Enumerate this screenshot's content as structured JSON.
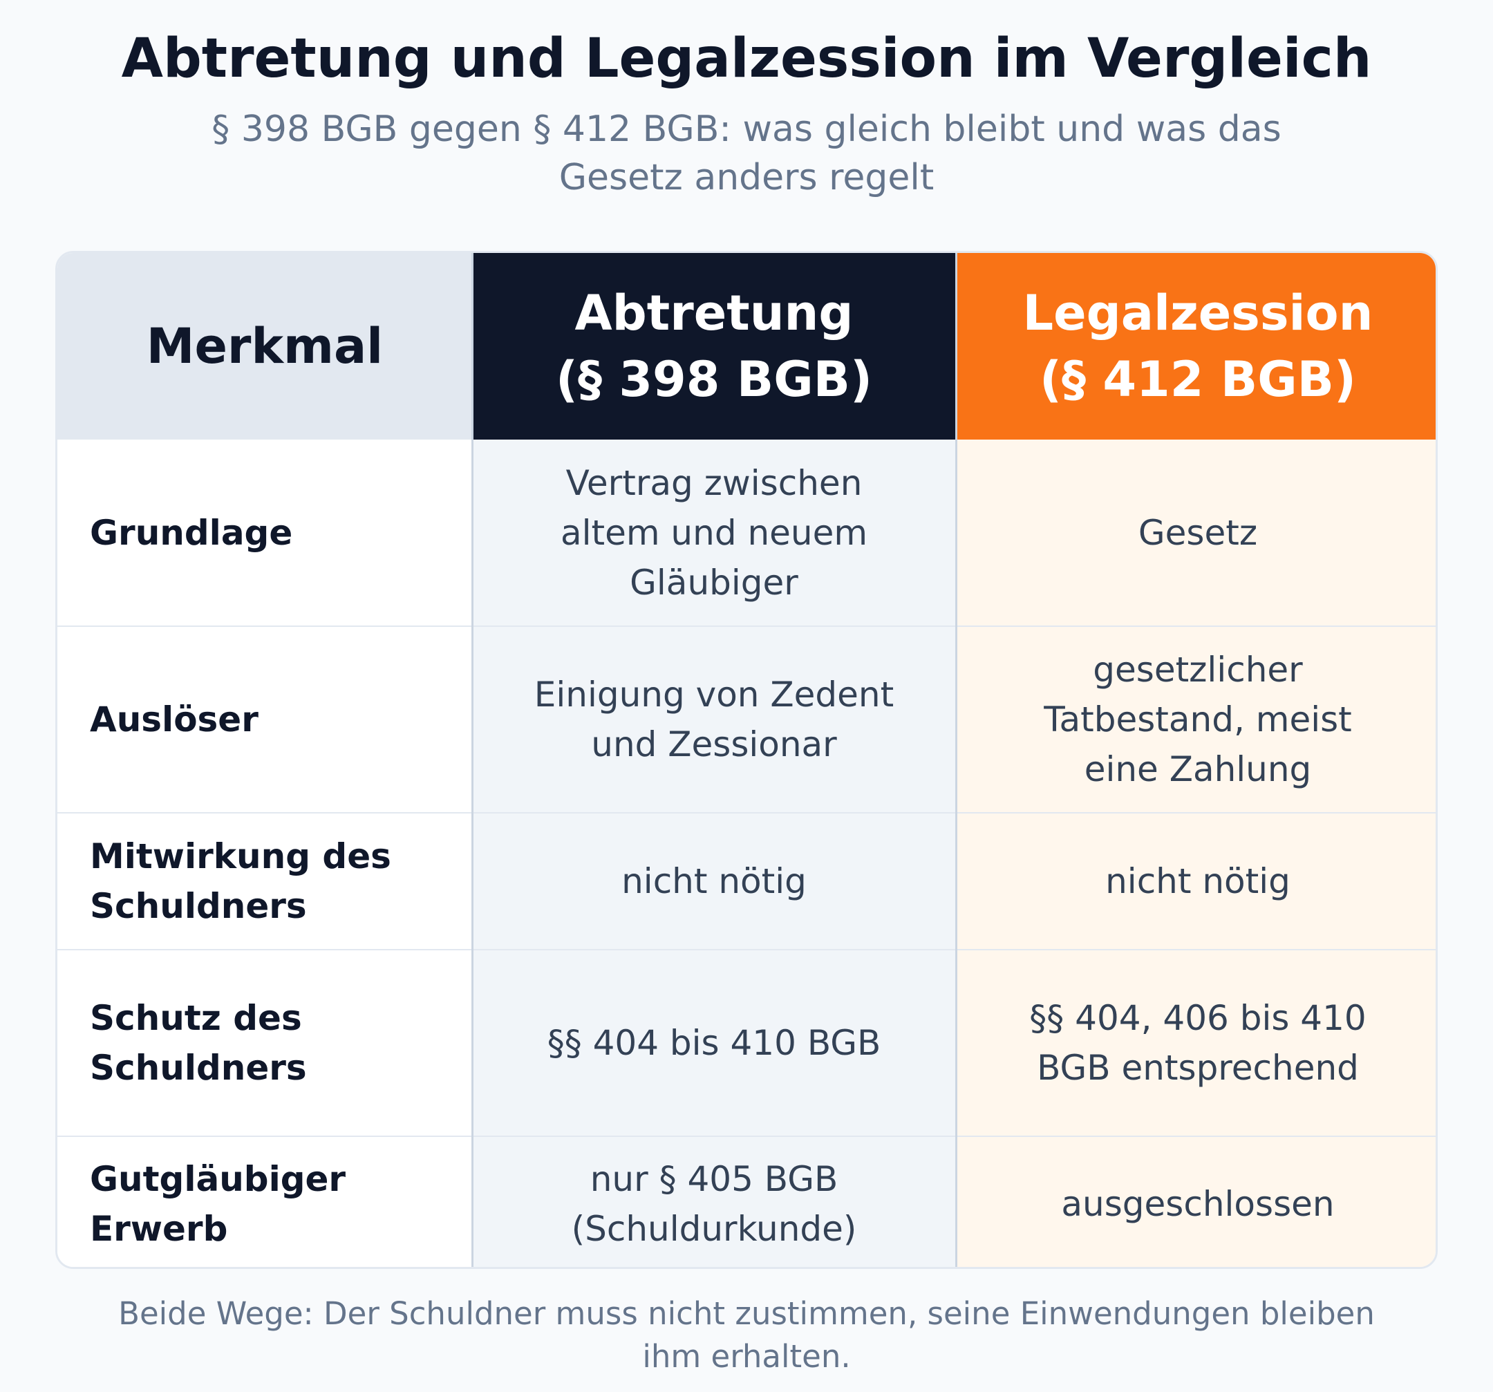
{
  "title": "Abtretung und Legalzession im Vergleich",
  "subtitle": "§ 398 BGB gegen § 412 BGB: was gleich bleibt und was das Gesetz anders regelt",
  "table": {
    "headers": {
      "feature": "Merkmal",
      "abtretung": "Abtretung\n(§ 398 BGB)",
      "legalzession": "Legalzession\n(§ 412 BGB)"
    },
    "rows": [
      {
        "feature": "Grundlage",
        "abtretung": "Vertrag zwischen altem und neuem Gläubiger",
        "legalzession": "Gesetz"
      },
      {
        "feature": "Auslöser",
        "abtretung": "Einigung von Zedent und Zessionar",
        "legalzession": "gesetzlicher Tatbestand, meist eine Zahlung"
      },
      {
        "feature": "Mitwirkung des Schuldners",
        "abtretung": "nicht nötig",
        "legalzession": "nicht nötig"
      },
      {
        "feature": "Schutz des Schuldners",
        "abtretung": "§§ 404 bis 410 BGB",
        "legalzession": "§§ 404, 406 bis 410 BGB entsprechend"
      },
      {
        "feature": "Gutgläubiger Erwerb",
        "abtretung": "nur § 405 BGB (Schuldurkunde)",
        "legalzession": "ausgeschlossen"
      }
    ]
  },
  "footer": "Beide Wege: Der Schuldner muss nicht zustimmen, seine Einwendungen bleiben ihm erhalten.",
  "colors": {
    "abtretung_header": "#0f172a",
    "legalzession_header": "#f97316",
    "feature_header": "#e2e8f0",
    "abtretung_column": "#f1f5f9",
    "legalzession_column": "#fff7ed"
  }
}
